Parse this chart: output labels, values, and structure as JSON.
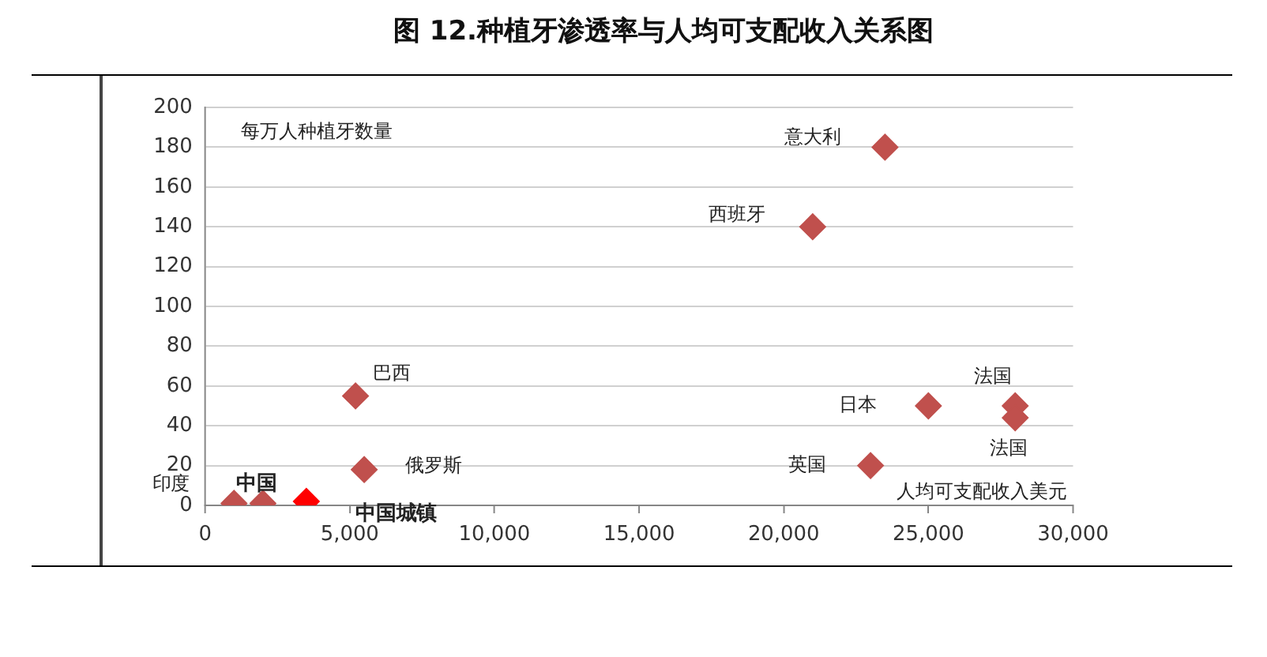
{
  "chart_data": {
    "type": "scatter",
    "title": "图 12.种植牙渗透率与人均可支配收入关系图",
    "xlabel": "人均可支配收入美元",
    "ylabel": "每万人种植牙数量",
    "x": [
      1000,
      2000,
      3500,
      5200,
      5500,
      21000,
      23500,
      25000,
      28000,
      28000,
      23000
    ],
    "values": [
      1,
      1,
      2,
      55,
      18,
      140,
      180,
      50,
      50,
      44,
      20
    ],
    "colors": [
      "#c0504d",
      "#c0504d",
      "#ff0000",
      "#c0504d",
      "#c0504d",
      "#c0504d",
      "#c0504d",
      "#c0504d",
      "#c0504d",
      "#c0504d",
      "#c0504d"
    ],
    "xlim": [
      0,
      30000
    ],
    "xticks": [
      0,
      {
        "value": 5000,
        "label": "5,000"
      },
      {
        "value": 10000,
        "label": "10,000"
      },
      {
        "value": 15000,
        "label": "15,000"
      },
      {
        "value": 20000,
        "label": "20,000"
      },
      {
        "value": 25000,
        "label": "25,000"
      },
      {
        "value": 30000,
        "label": "30,000"
      }
    ],
    "ylim": [
      0,
      200
    ],
    "yticks": [
      0,
      20,
      40,
      60,
      80,
      100,
      120,
      140,
      160,
      180,
      200
    ],
    "grid": "y",
    "marker": "diamond",
    "annotations": [
      {
        "text": "印度",
        "x": 1000,
        "y": 1
      },
      {
        "text": "中国",
        "x": 2000,
        "y": 1
      },
      {
        "text": "中国城镇",
        "x": 3500,
        "y": 2
      },
      {
        "text": "巴西",
        "x": 5200,
        "y": 55
      },
      {
        "text": "俄罗斯",
        "x": 5500,
        "y": 18
      },
      {
        "text": "西班牙",
        "x": 21000,
        "y": 140
      },
      {
        "text": "意大利",
        "x": 23500,
        "y": 180
      },
      {
        "text": "日本",
        "x": 25000,
        "y": 50
      },
      {
        "text": "法国",
        "x": 28000,
        "y": 50
      },
      {
        "text": "法国",
        "x": 28000,
        "y": 44
      },
      {
        "text": "英国",
        "x": 23000,
        "y": 20
      }
    ]
  }
}
